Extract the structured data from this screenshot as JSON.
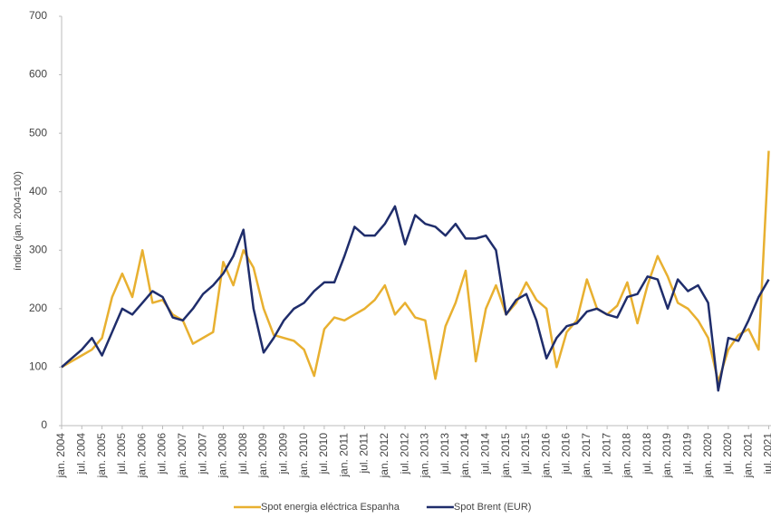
{
  "chart_data": {
    "type": "line",
    "y_label": "índice (jan. 2004=100)",
    "categories": [
      "jan. 2004",
      null,
      "jul. 2004",
      null,
      "jan. 2005",
      null,
      "jul. 2005",
      null,
      "jan. 2006",
      null,
      "jul. 2006",
      null,
      "jan. 2007",
      null,
      "jul. 2007",
      null,
      "jan. 2008",
      null,
      "jul. 2008",
      null,
      "jan. 2009",
      null,
      "jul. 2009",
      null,
      "jan. 2010",
      null,
      "jul. 2010",
      null,
      "jan. 2011",
      null,
      "jul. 2011",
      null,
      "jan. 2012",
      null,
      "jul. 2012",
      null,
      "jan. 2013",
      null,
      "jul. 2013",
      null,
      "jan. 2014",
      null,
      "jul. 2014",
      null,
      "jan. 2015",
      null,
      "jul. 2015",
      null,
      "jan. 2016",
      null,
      "jul. 2016",
      null,
      "jan. 2017",
      null,
      "jul. 2017",
      null,
      "jan. 2018",
      null,
      "jul. 2018",
      null,
      "jan. 2019",
      null,
      "jul. 2019",
      null,
      "jan. 2020",
      null,
      "jul. 2020",
      null,
      "jan. 2021",
      null,
      "jul. 2021"
    ],
    "series": [
      {
        "name": "Spot energia eléctrica Espanha",
        "color": "#e8b030",
        "values": [
          100,
          110,
          120,
          130,
          150,
          220,
          260,
          220,
          300,
          210,
          215,
          190,
          180,
          140,
          150,
          160,
          280,
          240,
          300,
          270,
          200,
          155,
          150,
          145,
          130,
          85,
          165,
          185,
          180,
          190,
          200,
          215,
          240,
          190,
          210,
          185,
          180,
          80,
          170,
          210,
          265,
          110,
          200,
          240,
          190,
          210,
          245,
          215,
          200,
          100,
          160,
          180,
          250,
          200,
          190,
          205,
          245,
          175,
          240,
          290,
          255,
          210,
          200,
          180,
          150,
          75,
          130,
          155,
          165,
          130,
          470
        ]
      },
      {
        "name": "Spot Brent (EUR)",
        "color": "#1f2d6b",
        "values": [
          100,
          115,
          130,
          150,
          120,
          160,
          200,
          190,
          210,
          230,
          220,
          185,
          180,
          200,
          225,
          240,
          260,
          290,
          335,
          200,
          125,
          150,
          180,
          200,
          210,
          230,
          245,
          245,
          290,
          340,
          325,
          325,
          345,
          375,
          310,
          360,
          345,
          340,
          325,
          345,
          320,
          320,
          325,
          300,
          190,
          215,
          225,
          180,
          115,
          150,
          170,
          175,
          195,
          200,
          190,
          185,
          220,
          225,
          255,
          250,
          200,
          250,
          230,
          240,
          210,
          60,
          150,
          145,
          180,
          220,
          250
        ]
      }
    ],
    "ylim": [
      0,
      700
    ],
    "yticks": [
      0,
      100,
      200,
      300,
      400,
      500,
      600,
      700
    ],
    "grid": false,
    "legend": "bottom"
  }
}
